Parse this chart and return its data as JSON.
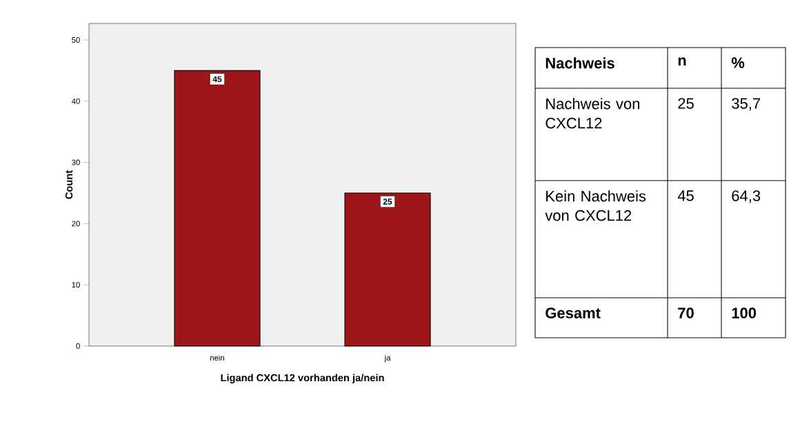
{
  "chart_data": [
    {
      "type": "bar",
      "categories": [
        "nein",
        "ja"
      ],
      "values": [
        45,
        25
      ],
      "color": "#a01519",
      "xlabel": "Ligand CXCL12 vorhanden ja/nein",
      "ylabel": "Count",
      "ylim": [
        0,
        52.7
      ],
      "yticks": [
        0,
        10,
        20,
        30,
        40,
        50
      ],
      "data_labels": true
    },
    {
      "type": "other",
      "annotations": [
        "Nachweis",
        "n",
        "%",
        "Nachweis von CXCL12",
        "25",
        "35,7",
        "Kein Nachweis von CXCL12",
        "45",
        "64,3",
        "Gesamt",
        "70",
        "100"
      ]
    }
  ]
}
